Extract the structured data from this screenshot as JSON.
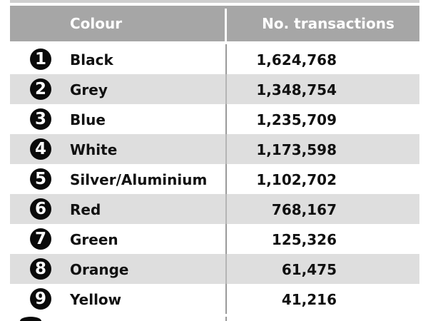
{
  "table": {
    "headers": {
      "colour": "Colour",
      "transactions": "No. transactions"
    },
    "rows": [
      {
        "rank": "1",
        "colour": "Black",
        "transactions": "1,624,768"
      },
      {
        "rank": "2",
        "colour": "Grey",
        "transactions": "1,348,754"
      },
      {
        "rank": "3",
        "colour": "Blue",
        "transactions": "1,235,709"
      },
      {
        "rank": "4",
        "colour": "White",
        "transactions": "1,173,598"
      },
      {
        "rank": "5",
        "colour": "Silver/Aluminium",
        "transactions": "1,102,702"
      },
      {
        "rank": "6",
        "colour": "Red",
        "transactions": "768,167"
      },
      {
        "rank": "7",
        "colour": "Green",
        "transactions": "125,326"
      },
      {
        "rank": "8",
        "colour": "Orange",
        "transactions": "61,475"
      },
      {
        "rank": "9",
        "colour": "Yellow",
        "transactions": "41,216"
      }
    ]
  },
  "colors": {
    "header_background": "#a6a6a6",
    "header_text": "#ffffff",
    "shaded_row": "#dedede",
    "rank_badge": "#0a0a0a"
  }
}
